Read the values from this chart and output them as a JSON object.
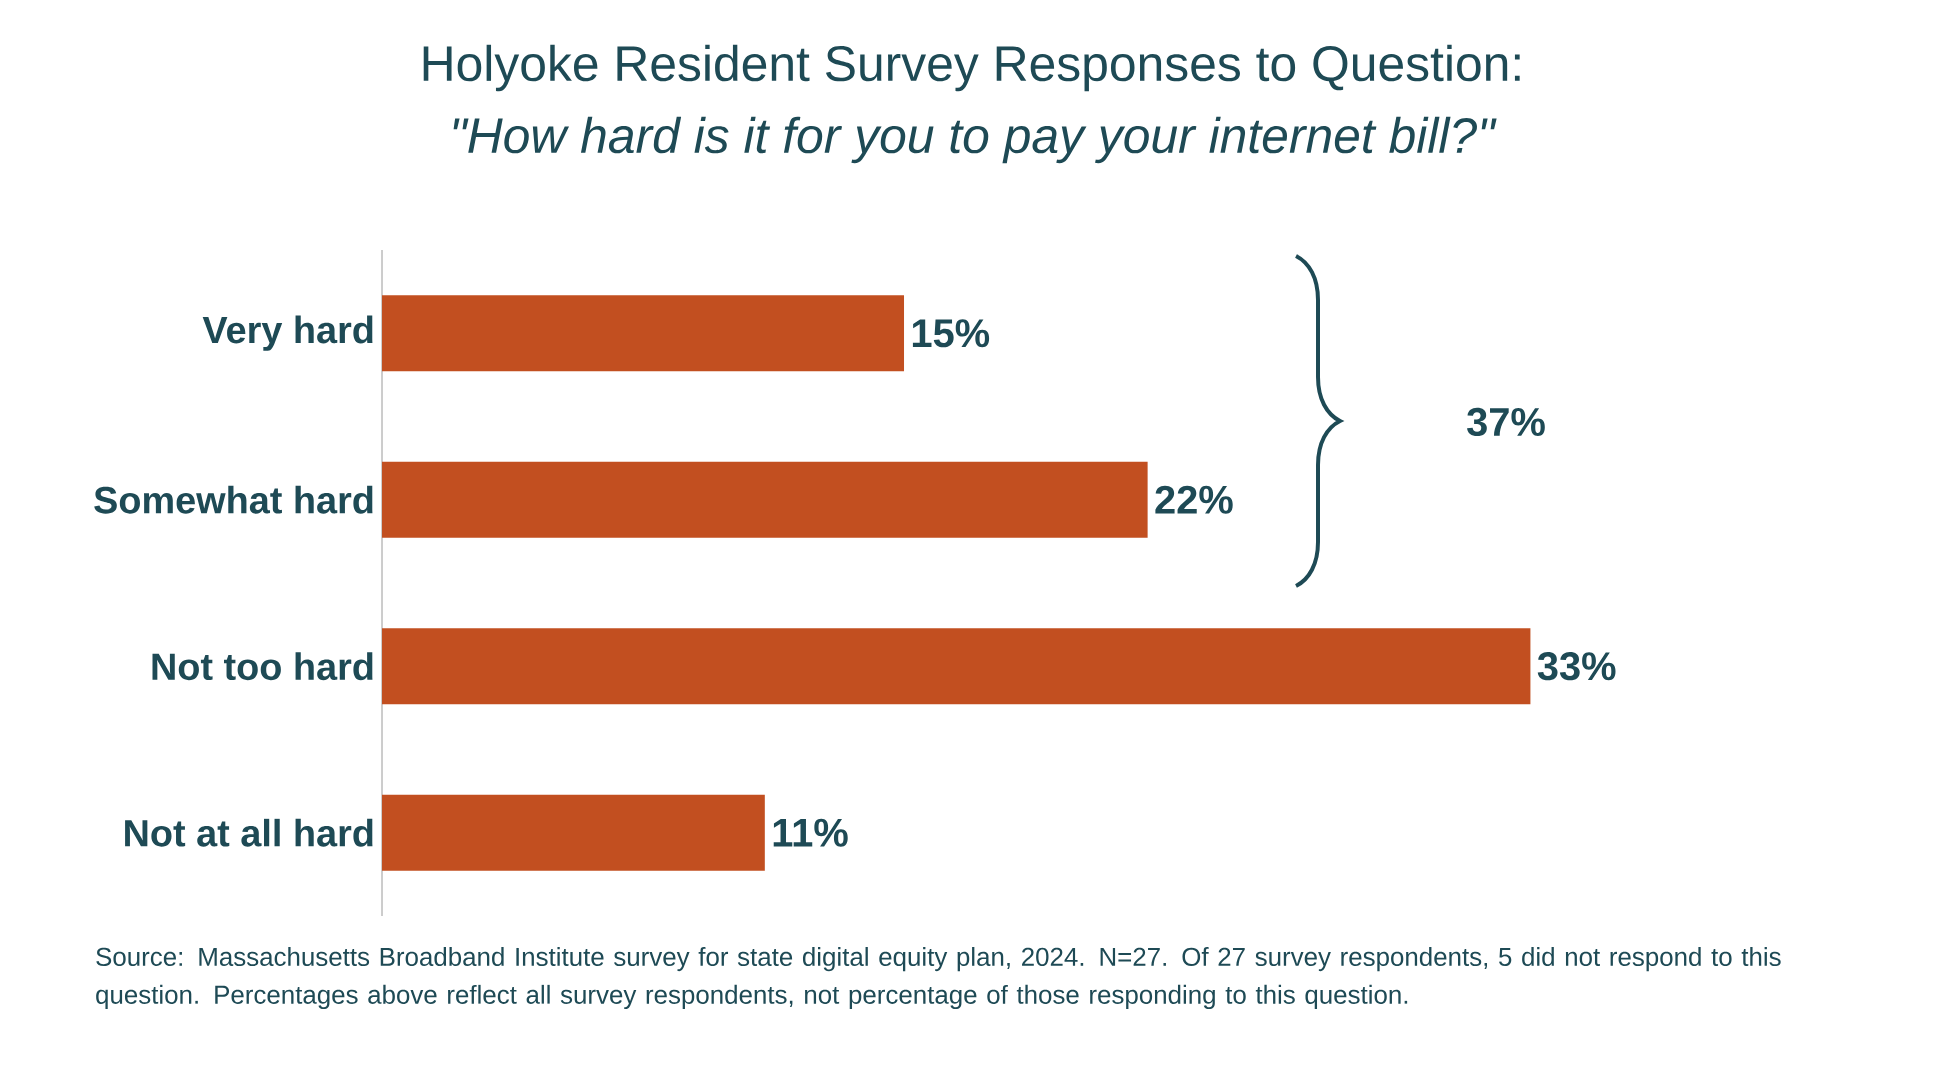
{
  "chart_data": {
    "type": "bar",
    "orientation": "horizontal",
    "title": "Holyoke Resident Survey Responses to Question:",
    "subtitle": "\"How hard is it for you to pay your internet bill?\"",
    "categories": [
      "Very hard",
      "Somewhat hard",
      "Not too hard",
      "Not at all hard"
    ],
    "values": [
      15,
      22,
      33,
      11
    ],
    "value_labels": [
      "15%",
      "22%",
      "33%",
      "11%"
    ],
    "color": "#c24f20",
    "annotations": [
      "37%",
      "Source: Massachusetts Broadband Institute survey for state digital equity plan, 2024. N=27. Of 27 survey respondents, 5 did not respond to this question. Percentages above reflect all survey respondents, not percentage of those responding to this question."
    ]
  }
}
